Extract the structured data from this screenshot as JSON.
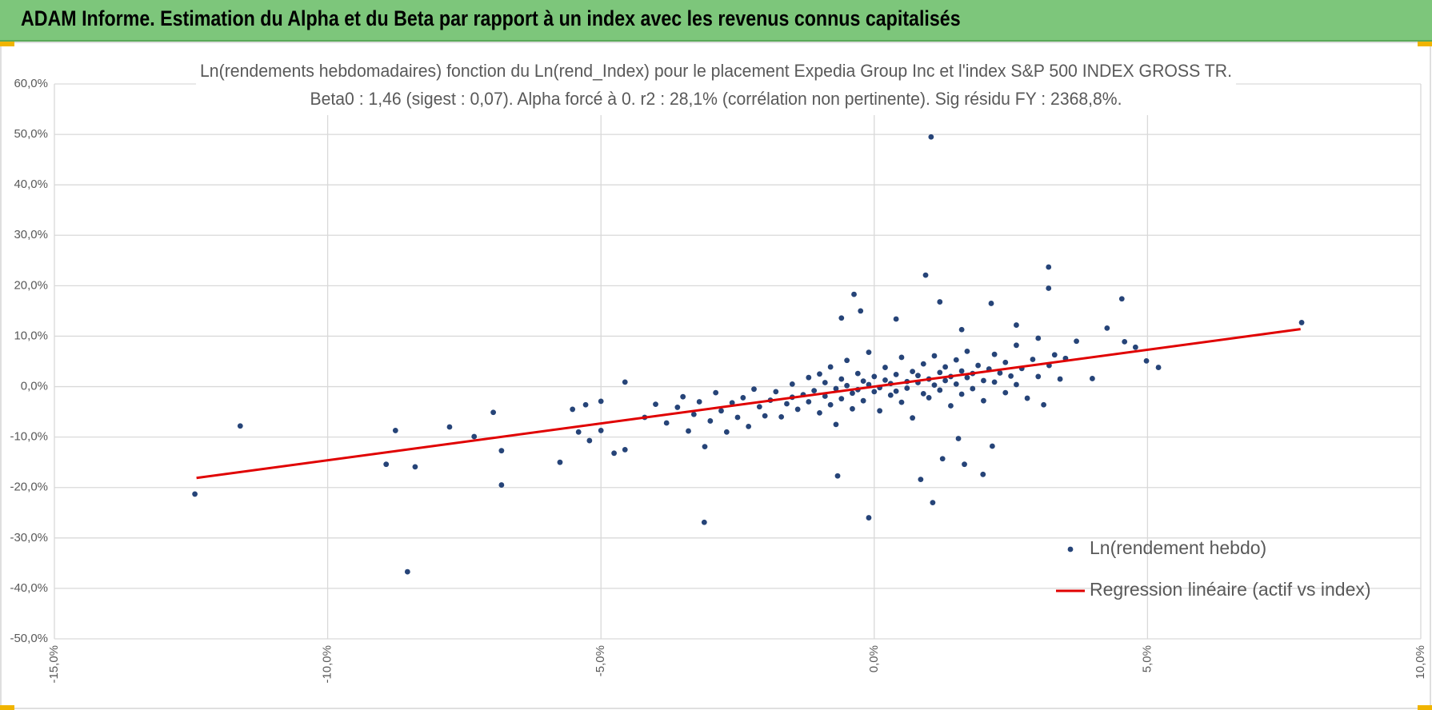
{
  "header": {
    "title": "ADAM Informe. Estimation du Alpha et du Beta par rapport à un index avec les revenus connus capitalisés"
  },
  "chart_data": {
    "type": "scatter",
    "title": "Ln(rendements hebdomadaires) fonction du Ln(rend_Index) pour le placement Expedia Group Inc et l'index S&P 500 INDEX GROSS TR.",
    "subtitle": "Beta0 : 1,46 (sigest : 0,07).  Alpha forcé à 0. r2 : 28,1% (corrélation non pertinente). Sig résidu FY : 2368,8%.",
    "xlim": [
      -15,
      10
    ],
    "xticks": [
      {
        "value": -15,
        "label": "-15,0%"
      },
      {
        "value": -10,
        "label": "-10,0%"
      },
      {
        "value": -5,
        "label": "-5,0%"
      },
      {
        "value": 0,
        "label": "0,0%"
      },
      {
        "value": 5,
        "label": "5,0%"
      },
      {
        "value": 10,
        "label": "10,0%"
      }
    ],
    "ylim": [
      -50,
      60
    ],
    "yticks": [
      {
        "value": -50,
        "label": "-50,0%"
      },
      {
        "value": -40,
        "label": "-40,0%"
      },
      {
        "value": -30,
        "label": "-30,0%"
      },
      {
        "value": -20,
        "label": "-20,0%"
      },
      {
        "value": -10,
        "label": "-10,0%"
      },
      {
        "value": 0,
        "label": "0,0%"
      },
      {
        "value": 10,
        "label": "10,0%"
      },
      {
        "value": 20,
        "label": "20,0%"
      },
      {
        "value": 30,
        "label": "30,0%"
      },
      {
        "value": 40,
        "label": "40,0%"
      },
      {
        "value": 50,
        "label": "50,0%"
      },
      {
        "value": 60,
        "label": "60,0%"
      }
    ],
    "grid": true,
    "legend": "lower right",
    "series": [
      {
        "name": "Ln(rendement hebdo)",
        "color": "#264478",
        "type": "scatter",
        "x": [
          1.04,
          -12.43,
          -11.6,
          -8.76,
          -8.93,
          -8.4,
          -8.54,
          -7.77,
          -7.32,
          -6.97,
          -6.82,
          -6.82,
          -5.75,
          -5.52,
          -5.28,
          -5.41,
          -5.21,
          -5.0,
          -5.0,
          -4.76,
          -4.56,
          -4.56,
          -3.11,
          -0.1,
          -0.67,
          -0.37,
          -0.25,
          0.94,
          1.2,
          0.85,
          1.07,
          1.25,
          1.54,
          1.65,
          1.99,
          2.16,
          2.14,
          3.19,
          3.19,
          4.53,
          4.26,
          4.98,
          5.2,
          4.78,
          7.82,
          3.99,
          4.58,
          -4.2,
          -4.0,
          -3.8,
          -3.6,
          -3.5,
          -3.4,
          -3.3,
          -3.2,
          -3.1,
          -3.0,
          -2.9,
          -2.8,
          -2.7,
          -2.6,
          -2.5,
          -2.4,
          -2.3,
          -2.2,
          -2.1,
          -2.0,
          -1.9,
          -1.8,
          -1.7,
          -1.6,
          -1.5,
          -1.5,
          -1.4,
          -1.3,
          -1.2,
          -1.2,
          -1.1,
          -1.0,
          -1.0,
          -0.9,
          -0.9,
          -0.8,
          -0.8,
          -0.7,
          -0.7,
          -0.6,
          -0.6,
          -0.5,
          -0.5,
          -0.4,
          -0.4,
          -0.3,
          -0.3,
          -0.2,
          -0.2,
          -0.1,
          -0.1,
          0,
          0,
          0.1,
          0.1,
          0.2,
          0.2,
          0.3,
          0.3,
          0.4,
          0.4,
          0.5,
          0.5,
          0.6,
          0.6,
          0.7,
          0.7,
          0.8,
          0.8,
          0.9,
          0.9,
          1.0,
          1.0,
          1.1,
          1.1,
          1.2,
          1.2,
          1.3,
          1.3,
          1.4,
          1.4,
          1.5,
          1.5,
          1.6,
          1.6,
          1.7,
          1.7,
          1.8,
          1.8,
          1.9,
          2.0,
          2.0,
          2.1,
          2.2,
          2.2,
          2.3,
          2.4,
          2.4,
          2.5,
          2.6,
          2.6,
          2.7,
          2.8,
          2.9,
          3.0,
          3.0,
          3.1,
          3.2,
          3.3,
          3.4,
          3.5,
          3.7,
          -0.6,
          0.4,
          1.6,
          2.6
        ],
        "values": [
          49.5,
          -21.3,
          -7.8,
          -8.7,
          -15.4,
          -15.9,
          -36.7,
          -8.0,
          -9.9,
          -5.1,
          -12.7,
          -19.5,
          -15.0,
          -4.5,
          -3.6,
          -9.0,
          -10.7,
          -2.9,
          -8.7,
          -13.2,
          0.9,
          -12.5,
          -26.9,
          -26.0,
          -17.7,
          18.3,
          15.0,
          22.1,
          16.8,
          -18.4,
          -23.0,
          -14.3,
          -10.3,
          -15.4,
          -17.4,
          -11.8,
          16.5,
          23.7,
          19.5,
          17.4,
          11.6,
          5.1,
          3.8,
          7.8,
          12.7,
          1.6,
          8.9,
          -6.1,
          -3.5,
          -7.2,
          -4.1,
          -2.0,
          -8.8,
          -5.5,
          -3.0,
          -11.9,
          -6.8,
          -1.2,
          -4.8,
          -9.0,
          -3.2,
          -6.1,
          -2.2,
          -7.9,
          -0.5,
          -4.0,
          -5.8,
          -2.7,
          -1.0,
          -6.0,
          -3.4,
          0.5,
          -2.1,
          -4.5,
          -1.6,
          1.8,
          -3.0,
          -0.8,
          -5.2,
          2.5,
          -1.9,
          0.8,
          -3.6,
          3.9,
          -0.4,
          -7.5,
          1.5,
          -2.4,
          0.2,
          5.2,
          -1.3,
          -4.4,
          2.6,
          -0.6,
          1.1,
          -2.8,
          0.4,
          6.8,
          -1.0,
          2.0,
          -0.2,
          -4.8,
          1.3,
          3.8,
          -1.7,
          0.6,
          2.4,
          -0.9,
          5.8,
          -3.1,
          1.0,
          -0.3,
          3.0,
          -6.2,
          0.8,
          2.2,
          -1.4,
          4.5,
          1.5,
          -2.2,
          6.1,
          0.3,
          2.8,
          -0.7,
          3.9,
          1.2,
          -3.8,
          2.0,
          5.3,
          0.5,
          3.1,
          -1.5,
          1.8,
          7.0,
          2.6,
          -0.4,
          4.2,
          1.2,
          -2.8,
          3.5,
          6.4,
          0.9,
          2.7,
          -1.2,
          4.8,
          2.1,
          8.2,
          0.4,
          3.6,
          -2.3,
          5.4,
          2.0,
          9.6,
          -3.6,
          4.2,
          6.3,
          1.5,
          5.6,
          9.0,
          13.6,
          13.4,
          11.3,
          12.2
        ]
      },
      {
        "name": "Regression linéaire (actif vs index)",
        "color": "#e00000",
        "type": "line",
        "x": [
          -12.4,
          7.8
        ],
        "values": [
          -18.1,
          11.4
        ]
      }
    ]
  }
}
